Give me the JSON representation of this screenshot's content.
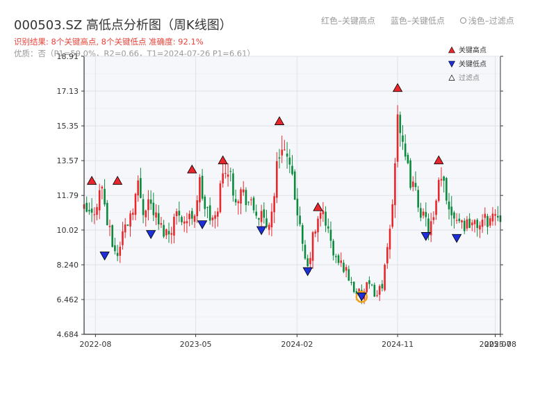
{
  "header": {
    "title": "000503.SZ 高低点分析图（周K线图）",
    "result": "识别结果: 8个关键高点, 8个关键低点  准确度: 92.1%",
    "quality": "优质：否（P1=59.0%，R2=0.66，T1=2024-07-26 P1=6.61）"
  },
  "top_legend": {
    "red": "红色–关键高点",
    "blue": "蓝色–关键低点",
    "light": "浅色–过滤点"
  },
  "colors": {
    "up": "#e8272c",
    "down": "#0a8a3c",
    "high_marker": "#e8272c",
    "low_marker": "#1d2fd6",
    "filtered_ring": "#f0a21b",
    "grid": "#dde2ea",
    "plot_bg": "#f6f7fa",
    "axis": "#333333"
  },
  "chart_data": {
    "type": "candlestick",
    "title": "000503.SZ 高低点分析图（周K线图）",
    "frequency": "weekly",
    "x_range": [
      "2022-07-01",
      "2025-08-08"
    ],
    "ylim": [
      4.684,
      18.91
    ],
    "y_ticks": [
      "4.684",
      "6.462",
      "8.240",
      "10.02",
      "11.79",
      "13.57",
      "15.35",
      "17.13",
      "18.91"
    ],
    "x_ticks": [
      {
        "date": "2022-08-01",
        "label": "2022-08"
      },
      {
        "date": "2023-05-01",
        "label": "2023-05"
      },
      {
        "date": "2024-02-01",
        "label": "2024-02"
      },
      {
        "date": "2024-11-01",
        "label": "2024-11"
      },
      {
        "date": "2025-07-25",
        "label": "2025-07"
      },
      {
        "date": "2025-08-08",
        "label": "2025-08"
      }
    ],
    "grid": true,
    "legend_position": "top-right",
    "legend": {
      "high": "关键高点",
      "low": "关键低点",
      "filtered": "过滤点"
    },
    "price_path": [
      [
        "2022-07-01",
        11.0
      ],
      [
        "2022-07-22",
        10.7
      ],
      [
        "2022-08-05",
        11.5
      ],
      [
        "2022-08-19",
        12.3
      ],
      [
        "2022-09-02",
        10.4
      ],
      [
        "2022-09-16",
        9.3
      ],
      [
        "2022-09-30",
        8.7
      ],
      [
        "2022-10-14",
        9.9
      ],
      [
        "2022-10-28",
        10.5
      ],
      [
        "2022-11-11",
        11.3
      ],
      [
        "2022-11-25",
        12.3
      ],
      [
        "2022-12-09",
        11.1
      ],
      [
        "2022-12-23",
        11.6
      ],
      [
        "2023-01-06",
        11.0
      ],
      [
        "2023-01-20",
        10.3
      ],
      [
        "2023-02-03",
        10.0
      ],
      [
        "2023-02-17",
        9.9
      ],
      [
        "2023-03-03",
        10.6
      ],
      [
        "2023-03-17",
        11.0
      ],
      [
        "2023-03-31",
        10.5
      ],
      [
        "2023-04-14",
        10.6
      ],
      [
        "2023-04-28",
        11.0
      ],
      [
        "2023-05-12",
        12.4
      ],
      [
        "2023-05-26",
        11.2
      ],
      [
        "2023-06-09",
        10.6
      ],
      [
        "2023-06-23",
        10.5
      ],
      [
        "2023-07-07",
        12.2
      ],
      [
        "2023-07-21",
        13.4
      ],
      [
        "2023-08-04",
        12.7
      ],
      [
        "2023-08-18",
        11.8
      ],
      [
        "2023-09-01",
        12.0
      ],
      [
        "2023-09-15",
        11.7
      ],
      [
        "2023-09-29",
        11.2
      ],
      [
        "2023-10-13",
        10.9
      ],
      [
        "2023-10-27",
        10.6
      ],
      [
        "2023-11-10",
        10.2
      ],
      [
        "2023-11-24",
        10.9
      ],
      [
        "2023-12-08",
        13.2
      ],
      [
        "2023-12-22",
        14.6
      ],
      [
        "2024-01-05",
        13.6
      ],
      [
        "2024-01-19",
        12.4
      ],
      [
        "2024-02-02",
        11.1
      ],
      [
        "2024-02-16",
        9.0
      ],
      [
        "2024-03-01",
        8.0
      ],
      [
        "2024-03-15",
        9.6
      ],
      [
        "2024-03-29",
        10.4
      ],
      [
        "2024-04-12",
        11.0
      ],
      [
        "2024-04-26",
        9.9
      ],
      [
        "2024-05-10",
        8.8
      ],
      [
        "2024-05-24",
        8.3
      ],
      [
        "2024-06-07",
        8.2
      ],
      [
        "2024-06-21",
        7.6
      ],
      [
        "2024-07-05",
        7.0
      ],
      [
        "2024-07-19",
        6.75
      ],
      [
        "2024-07-26",
        6.61
      ],
      [
        "2024-08-09",
        7.1
      ],
      [
        "2024-08-23",
        7.0
      ],
      [
        "2024-09-06",
        6.7
      ],
      [
        "2024-09-20",
        7.3
      ],
      [
        "2024-10-04",
        8.8
      ],
      [
        "2024-10-18",
        11.3
      ],
      [
        "2024-11-01",
        16.3
      ],
      [
        "2024-11-15",
        14.0
      ],
      [
        "2024-11-29",
        13.0
      ],
      [
        "2024-12-13",
        12.2
      ],
      [
        "2024-12-27",
        11.5
      ],
      [
        "2025-01-10",
        10.6
      ],
      [
        "2025-01-24",
        10.2
      ],
      [
        "2025-02-07",
        10.4
      ],
      [
        "2025-02-21",
        12.2
      ],
      [
        "2025-03-07",
        12.5
      ],
      [
        "2025-03-21",
        11.2
      ],
      [
        "2025-04-04",
        10.9
      ],
      [
        "2025-04-18",
        10.6
      ],
      [
        "2025-05-02",
        10.3
      ],
      [
        "2025-05-16",
        10.5
      ],
      [
        "2025-05-30",
        10.2
      ],
      [
        "2025-06-13",
        10.4
      ],
      [
        "2025-06-27",
        10.5
      ],
      [
        "2025-07-11",
        10.6
      ],
      [
        "2025-07-25",
        10.9
      ],
      [
        "2025-08-08",
        10.8
      ]
    ],
    "key_highs": [
      {
        "date": "2022-07-22",
        "value": 12.55
      },
      {
        "date": "2022-09-30",
        "value": 12.55
      },
      {
        "date": "2023-04-21",
        "value": 13.13
      },
      {
        "date": "2023-07-14",
        "value": 13.6
      },
      {
        "date": "2023-12-15",
        "value": 15.6
      },
      {
        "date": "2024-03-29",
        "value": 11.2
      },
      {
        "date": "2024-11-01",
        "value": 17.3
      },
      {
        "date": "2025-02-21",
        "value": 13.6
      }
    ],
    "key_lows": [
      {
        "date": "2022-08-26",
        "value": 8.7
      },
      {
        "date": "2022-12-30",
        "value": 9.8
      },
      {
        "date": "2023-05-19",
        "value": 10.3
      },
      {
        "date": "2023-10-27",
        "value": 10.0
      },
      {
        "date": "2024-03-01",
        "value": 7.9
      },
      {
        "date": "2024-07-26",
        "value": 6.61
      },
      {
        "date": "2025-01-17",
        "value": 9.7
      },
      {
        "date": "2025-04-11",
        "value": 9.6
      }
    ],
    "filtered_points": [
      {
        "date": "2024-07-26",
        "value": 6.6
      }
    ]
  }
}
